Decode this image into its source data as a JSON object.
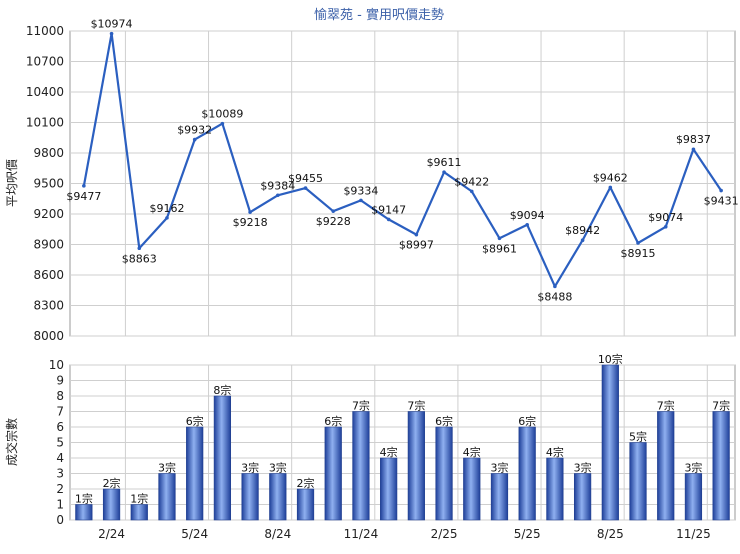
{
  "colors": {
    "line": "#2b5fc0",
    "bar": "#3a66c8",
    "title": "#3a5fa8",
    "grid": "#cfcfcf"
  },
  "chart_data": [
    {
      "type": "line",
      "title": "愉翠苑 - 實用呎價走勢",
      "ylabel": "平均呎價",
      "ylim": [
        8000,
        11000
      ],
      "yticks": [
        "8000",
        "8300",
        "8600",
        "8900",
        "9200",
        "9500",
        "9800",
        "10100",
        "10400",
        "10700",
        "11000"
      ],
      "series": [
        {
          "values": [
            9477,
            10974,
            8863,
            9162,
            9932,
            10089,
            9218,
            9384,
            9455,
            9228,
            9334,
            9147,
            8997,
            9611,
            9422,
            8961,
            9094,
            8488,
            8942,
            9462,
            8915,
            9074,
            9837,
            9431
          ],
          "labels": [
            "$9477",
            "$10974",
            "$8863",
            "$9162",
            "$9932",
            "$10089",
            "$9218",
            "$9384",
            "$9455",
            "$9228",
            "$9334",
            "$9147",
            "$8997",
            "$9611",
            "$9422",
            "$8961",
            "$9094",
            "$8488",
            "$8942",
            "$9462",
            "$8915",
            "$9074",
            "$9837",
            "$9431"
          ]
        }
      ],
      "grid": true
    },
    {
      "type": "bar",
      "ylabel": "成交宗數",
      "ylim": [
        0,
        10
      ],
      "yticks": [
        "0",
        "1",
        "2",
        "3",
        "4",
        "5",
        "6",
        "7",
        "8",
        "9",
        "10"
      ],
      "values": [
        1,
        2,
        1,
        3,
        6,
        8,
        3,
        3,
        2,
        6,
        7,
        4,
        7,
        6,
        4,
        3,
        6,
        4,
        3,
        10,
        5,
        7,
        3,
        7
      ],
      "labels": [
        "1宗",
        "2宗",
        "1宗",
        "3宗",
        "6宗",
        "8宗",
        "3宗",
        "3宗",
        "2宗",
        "6宗",
        "7宗",
        "4宗",
        "7宗",
        "6宗",
        "4宗",
        "3宗",
        "6宗",
        "4宗",
        "3宗",
        "10宗",
        "5宗",
        "7宗",
        "3宗",
        "7宗"
      ],
      "xticks": [
        "2/24",
        "5/24",
        "8/24",
        "11/24",
        "2/25",
        "5/25",
        "8/25",
        "11/25"
      ],
      "grid": true
    }
  ]
}
